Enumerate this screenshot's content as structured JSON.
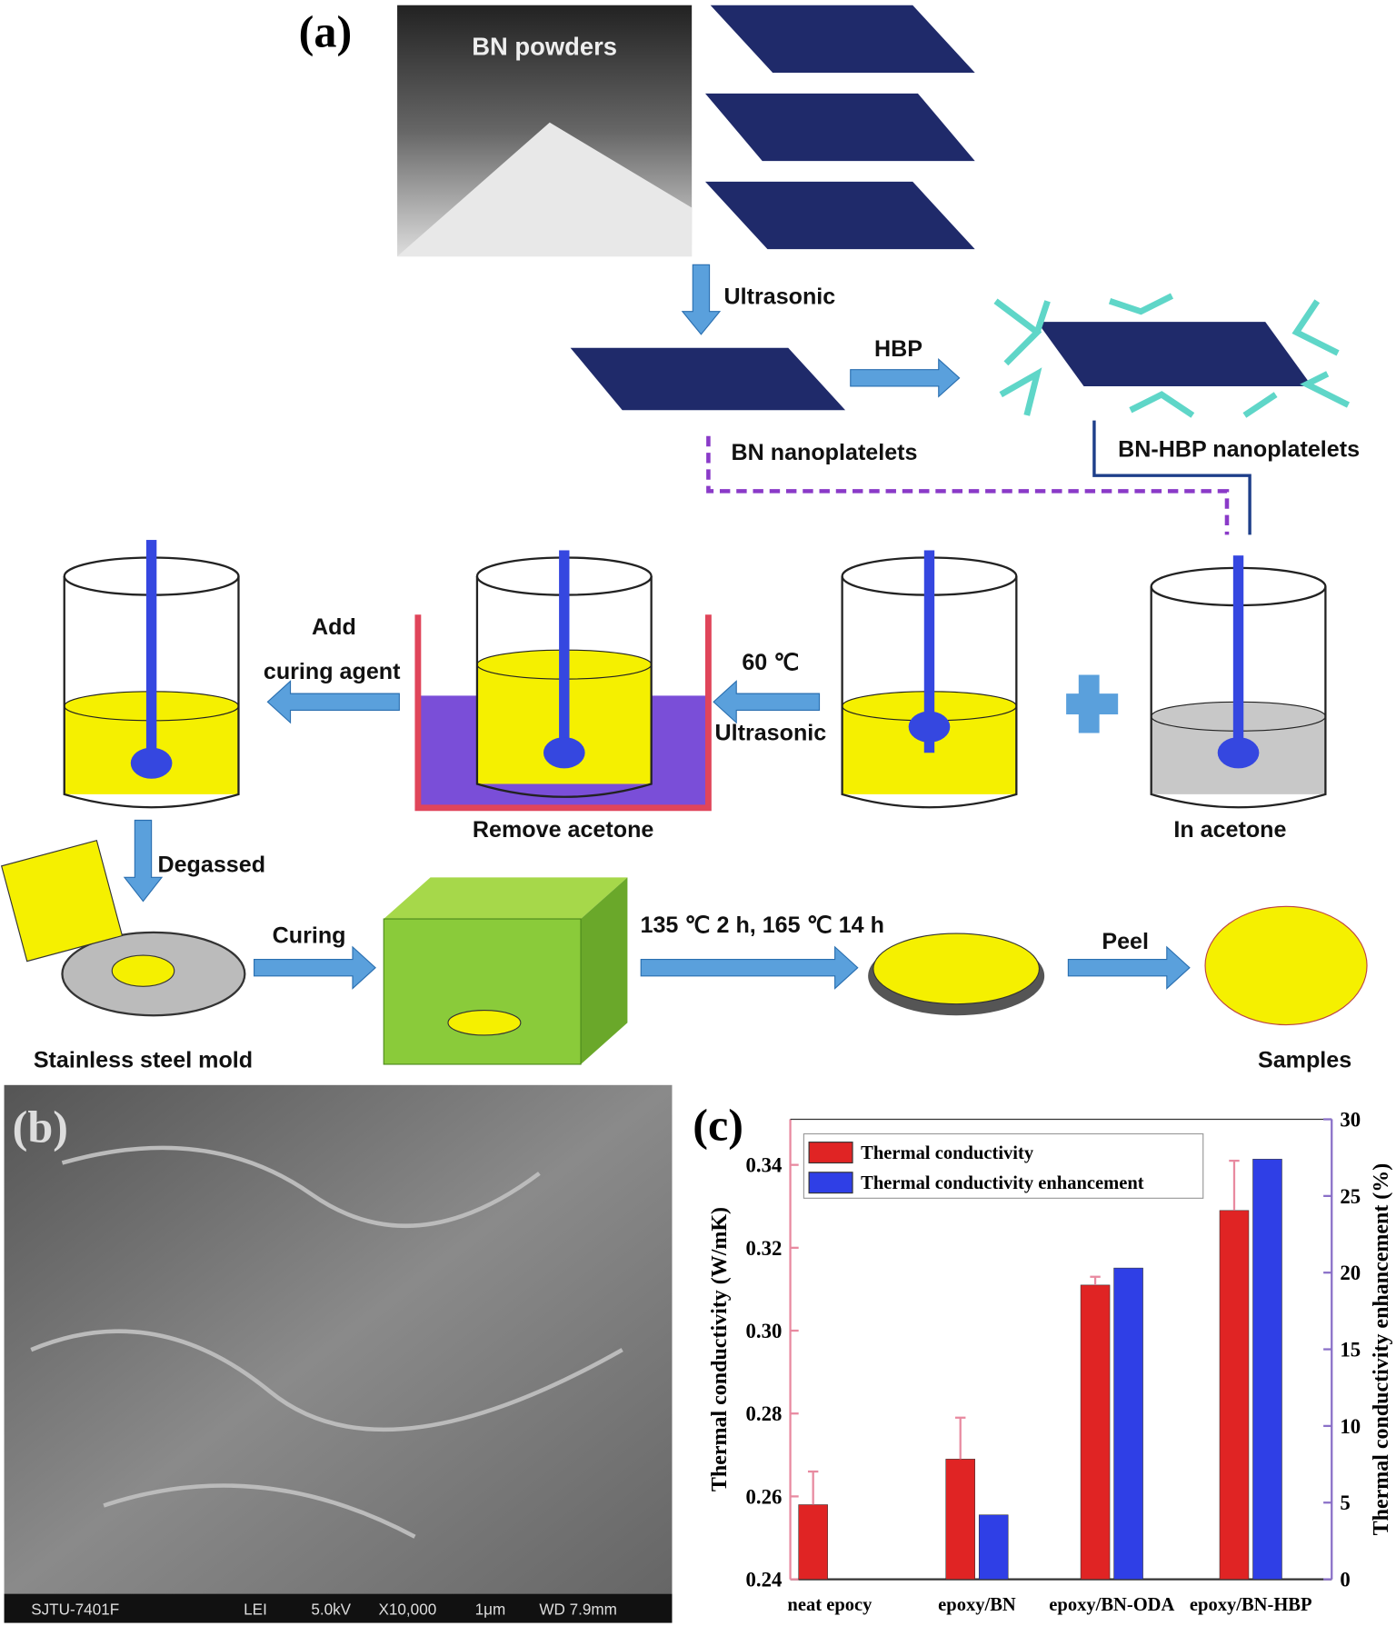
{
  "panel_a": {
    "label": "(a)",
    "texts": [
      "BN powders",
      "Ultrasonic",
      "HBP",
      "BN nanoplatelets",
      "BN-HBP nanoplatelets",
      "Add",
      "curing agent",
      "60 ℃",
      "Ultrasonic",
      "Remove acetone",
      "In acetone",
      "Degassed",
      "Curing",
      "135 ℃ 2 h, 165 ℃ 14 h",
      "Peel",
      "Stainless steel mold",
      "Samples"
    ]
  },
  "panel_b": {
    "label": "(b)",
    "info_bar": [
      "SJTU-7401F",
      "LEI",
      "5.0kV",
      "X10,000",
      "1μm",
      "WD 7.9mm"
    ]
  },
  "chart_data": {
    "type": "bar",
    "label": "(c)",
    "categories": [
      "neat epocy",
      "epoxy/BN",
      "epoxy/BN-ODA",
      "epoxy/BN-HBP"
    ],
    "series": [
      {
        "name": "Thermal conductivity",
        "color": "#e02424",
        "values": [
          0.258,
          0.269,
          0.311,
          0.329
        ],
        "errors": [
          0.008,
          0.01,
          0.002,
          0.012
        ]
      },
      {
        "name": "Thermal conductivity enhancement",
        "color": "#2f3fe6",
        "values": [
          0,
          4.2,
          20.3,
          27.4
        ],
        "axis": "y2"
      }
    ],
    "y_label": "Thermal conductivity (W/mK)",
    "y2_label": "Thermal conductivity enhancement (%)",
    "ylim": [
      0.24,
      0.351
    ],
    "yticks": [
      0.24,
      0.26,
      0.28,
      {
        "value": 0.3,
        "label": "0.30"
      },
      0.32,
      0.34
    ],
    "y2lim": [
      0,
      30
    ],
    "y2ticks": [
      0,
      5,
      10,
      15,
      20,
      25,
      30
    ]
  }
}
